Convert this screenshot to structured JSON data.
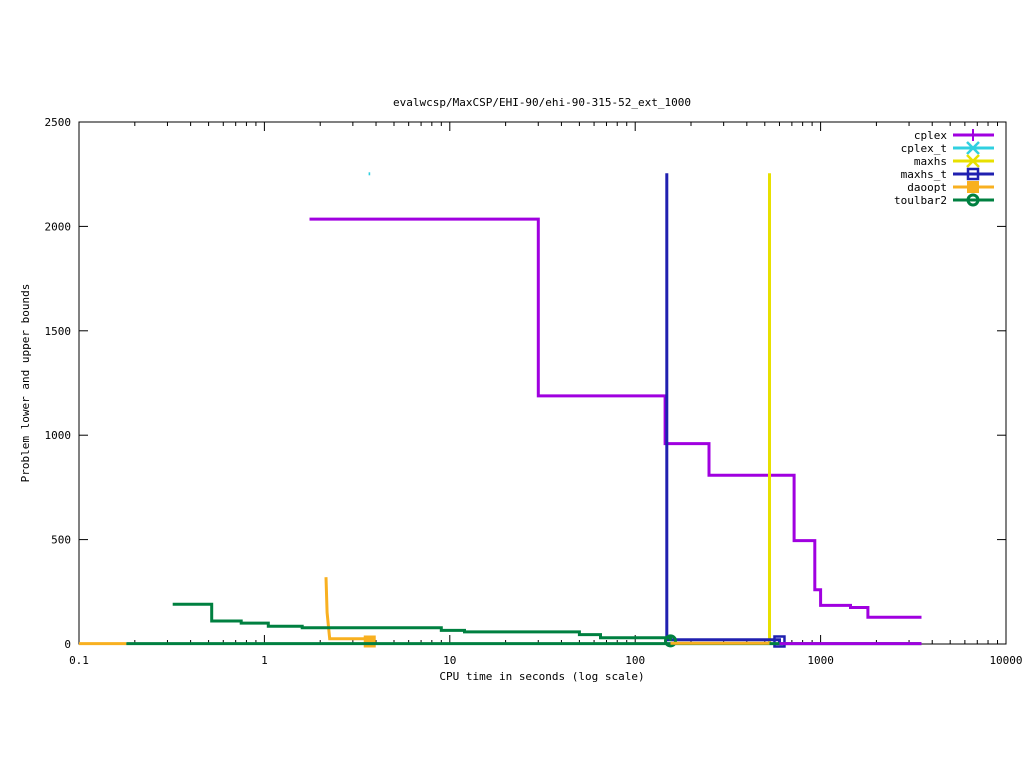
{
  "chart_data": {
    "type": "line",
    "title": "evalwcsp/MaxCSP/EHI-90/ehi-90-315-52_ext_1000",
    "xlabel": "CPU time in seconds (log scale)",
    "ylabel": "Problem lower and upper bounds",
    "x_scale": "log",
    "xlim": [
      0.1,
      10000
    ],
    "ylim": [
      0,
      2500
    ],
    "x_ticks": [
      0.1,
      1,
      10,
      100,
      1000,
      10000
    ],
    "x_tick_labels": [
      "0.1",
      "1",
      "10",
      "100",
      "1000",
      "10000"
    ],
    "y_ticks": [
      0,
      500,
      1000,
      1500,
      2000,
      2500
    ],
    "y_tick_labels": [
      "0",
      "500",
      "1000",
      "1500",
      "2000",
      "2500"
    ],
    "grid": false,
    "legend_position": "top-right",
    "series": [
      {
        "name": "cplex",
        "color": "#a000e0",
        "marker": "plus",
        "points": [
          [
            1.75,
            2035
          ],
          [
            30,
            2035
          ],
          [
            30,
            1188
          ],
          [
            145,
            1188
          ],
          [
            145,
            960
          ],
          [
            250,
            960
          ],
          [
            250,
            808
          ],
          [
            720,
            808
          ],
          [
            720,
            495
          ],
          [
            930,
            495
          ],
          [
            930,
            260
          ],
          [
            1000,
            260
          ],
          [
            1000,
            185
          ],
          [
            1450,
            185
          ],
          [
            1450,
            175
          ],
          [
            1800,
            175
          ],
          [
            1800,
            128
          ],
          [
            3500,
            128
          ]
        ],
        "markers": []
      },
      {
        "name": "cplex_t",
        "color": "#30d0e0",
        "marker": "x",
        "points": [
          [
            3.65,
            2252
          ],
          [
            3.72,
            2252
          ]
        ],
        "markers": []
      },
      {
        "name": "maxhs",
        "color": "#e8e000",
        "marker": "x",
        "points": [
          [
            530,
            2255
          ],
          [
            530,
            0
          ]
        ],
        "markers": []
      },
      {
        "name": "maxhs_t",
        "color": "#2020b0",
        "marker": "square",
        "points": [
          [
            148,
            2255
          ],
          [
            148,
            20
          ],
          [
            600,
            20
          ],
          [
            600,
            0
          ]
        ],
        "markers": [
          [
            600,
            12
          ]
        ]
      },
      {
        "name": "daoopt",
        "color": "#f8b020",
        "marker": "filled-square",
        "points": [
          [
            2.15,
            320
          ],
          [
            2.18,
            150
          ],
          [
            2.25,
            25
          ],
          [
            3.7,
            25
          ],
          [
            3.7,
            0
          ]
        ],
        "markers": [
          [
            3.7,
            12
          ]
        ]
      },
      {
        "name": "toulbar2",
        "color": "#008040",
        "marker": "circle",
        "points": [
          [
            0.32,
            190
          ],
          [
            0.52,
            190
          ],
          [
            0.52,
            110
          ],
          [
            0.75,
            110
          ],
          [
            0.75,
            100
          ],
          [
            1.05,
            100
          ],
          [
            1.05,
            85
          ],
          [
            1.6,
            85
          ],
          [
            1.6,
            78
          ],
          [
            9.0,
            78
          ],
          [
            9.0,
            65
          ],
          [
            12,
            65
          ],
          [
            12,
            58
          ],
          [
            50,
            58
          ],
          [
            50,
            45
          ],
          [
            65,
            45
          ],
          [
            65,
            30
          ],
          [
            155,
            30
          ],
          [
            155,
            15
          ]
        ],
        "markers": [
          [
            155,
            15
          ]
        ]
      },
      {
        "name": "",
        "color": "#008040",
        "marker": "",
        "points": [
          [
            0.18,
            2
          ],
          [
            3500,
            2
          ]
        ],
        "markers": []
      },
      {
        "name": "",
        "color": "#f8b020",
        "marker": "",
        "points": [
          [
            0.1,
            2
          ],
          [
            0.18,
            2
          ]
        ],
        "markers": []
      },
      {
        "name": "",
        "color": "#a000e0",
        "marker": "",
        "points": [
          [
            600,
            2
          ],
          [
            3500,
            2
          ]
        ],
        "markers": []
      },
      {
        "name": "",
        "color": "#f8b020",
        "marker": "",
        "points": [
          [
            155,
            4
          ],
          [
            530,
            4
          ]
        ],
        "markers": []
      }
    ]
  }
}
